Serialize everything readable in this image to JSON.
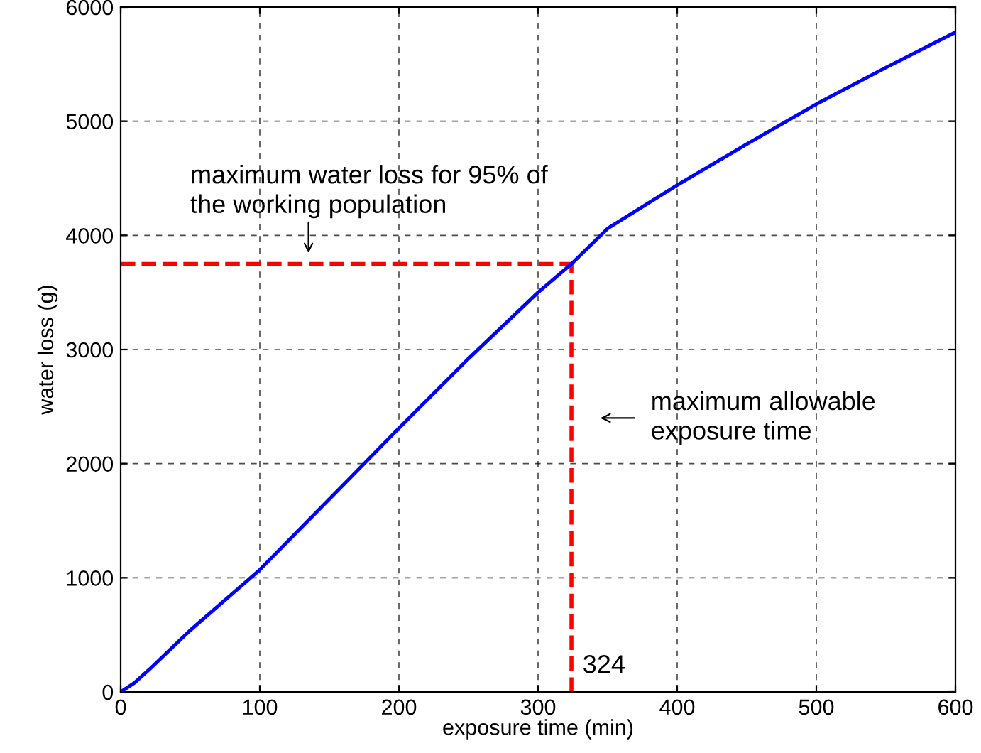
{
  "chart_data": {
    "type": "line",
    "xlabel": "exposure time (min)",
    "ylabel": "water loss (g)",
    "x": [
      0,
      10,
      20,
      50,
      100,
      150,
      200,
      250,
      300,
      324,
      350,
      400,
      450,
      500,
      550,
      600
    ],
    "series": [
      {
        "color": "#0000ff",
        "values": [
          0,
          80,
          190,
          540,
          1070,
          1690,
          2310,
          2920,
          3500,
          3750,
          4060,
          4440,
          4800,
          5150,
          5470,
          5780
        ]
      }
    ],
    "xlim": [
      0,
      600
    ],
    "ylim": [
      0,
      6000
    ],
    "xticks": [
      0,
      100,
      200,
      300,
      400,
      500,
      600
    ],
    "yticks": [
      0,
      1000,
      2000,
      3000,
      4000,
      5000,
      6000
    ],
    "grid": true,
    "line_style": "solid",
    "marker": "none",
    "ref_lines": [
      {
        "axis": "y",
        "value": 3750,
        "color": "#ff0000",
        "line_style": "dashed"
      },
      {
        "axis": "x",
        "value": 324,
        "label": "324",
        "color": "#ff0000",
        "line_style": "dashed"
      }
    ],
    "annotations": [
      {
        "text": "maximum water loss for 95% of\nthe working population",
        "x": 135,
        "y": 3750
      },
      "maximum allowable\nexposure time"
    ]
  }
}
